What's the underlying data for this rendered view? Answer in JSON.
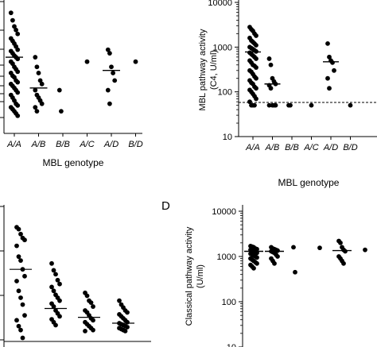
{
  "panel_letter": "D",
  "chart_data": [
    {
      "id": "panel-top-left",
      "type": "scatter",
      "title": "",
      "xlabel": "MBL genotype",
      "ylabel": "",
      "yscale": "log",
      "yticks": [],
      "categories": [
        "A/A",
        "A/B",
        "B/B",
        "A/C",
        "A/D",
        "B/D"
      ],
      "points": {
        "A/A": [
          1500,
          1200,
          1000,
          900,
          800,
          700,
          650,
          600,
          550,
          500,
          480,
          450,
          420,
          400,
          380,
          350,
          330,
          300,
          280,
          260,
          250,
          230,
          220,
          200,
          190,
          180,
          170,
          160,
          150,
          140,
          130,
          120,
          110,
          100,
          95,
          90,
          85,
          80,
          75,
          70
        ],
        "A/B": [
          400,
          300,
          250,
          200,
          180,
          150,
          130,
          120,
          110,
          100,
          90,
          80
        ],
        "B/B": [
          150,
          80
        ],
        "A/C": [
          350
        ],
        "A/D": [
          500,
          450,
          300,
          250,
          200,
          150,
          100
        ],
        "B/D": [
          350
        ]
      },
      "medians": {
        "A/A": 400,
        "A/B": 160,
        "A/D": 270
      }
    },
    {
      "id": "panel-top-right",
      "type": "scatter",
      "title": "",
      "xlabel": "MBL genotype",
      "ylabel": "MBL pathway activity\n(C4, U/ml)",
      "yscale": "log",
      "ylim": [
        10,
        10000
      ],
      "yticks": [
        "10",
        "100",
        "1000",
        "10000"
      ],
      "categories": [
        "A/A",
        "A/B",
        "B/B",
        "A/C",
        "A/D",
        "B/D"
      ],
      "points": {
        "A/A": [
          2800,
          2500,
          2300,
          2000,
          1800,
          1600,
          1400,
          1300,
          1200,
          1100,
          1000,
          950,
          900,
          850,
          800,
          750,
          700,
          650,
          600,
          550,
          500,
          450,
          400,
          380,
          350,
          300,
          280,
          250,
          220,
          200,
          180,
          160,
          150,
          130,
          120,
          110,
          100,
          90,
          80,
          70,
          60,
          50,
          50,
          50
        ],
        "A/B": [
          550,
          400,
          200,
          170,
          150,
          140,
          120,
          50,
          50,
          50,
          50
        ],
        "B/B": [
          50,
          50
        ],
        "A/C": [
          50
        ],
        "A/D": [
          1200,
          600,
          500,
          450,
          300,
          200,
          120
        ],
        "B/D": [
          50
        ]
      },
      "medians": {
        "A/A": 780,
        "A/B": 150,
        "A/D": 470
      },
      "detection_limit": 58
    },
    {
      "id": "panel-bottom-left",
      "type": "scatter",
      "title": "",
      "xlabel": "",
      "ylabel": "",
      "yticks": [],
      "groups": 4,
      "points": [
        [
          255,
          253,
          248,
          244,
          242,
          236,
          225,
          221,
          212,
          205,
          200,
          190,
          183,
          176,
          165,
          160,
          154,
          150,
          142
        ],
        [
          218,
          211,
          207,
          201,
          197,
          194,
          190,
          186,
          183,
          180,
          177,
          174,
          170,
          167,
          164,
          161,
          158,
          155
        ],
        [
          188,
          185,
          180,
          178,
          174,
          170,
          168,
          165,
          162,
          160,
          158,
          156,
          154,
          152,
          150,
          149
        ],
        [
          180,
          176,
          173,
          170,
          168,
          166,
          164,
          162,
          160,
          158,
          157,
          156,
          155,
          154,
          153,
          152,
          151,
          150,
          149
        ]
      ],
      "medians": [
        212,
        172,
        163,
        157
      ]
    },
    {
      "id": "panel-D",
      "type": "scatter",
      "title": "",
      "xlabel": "",
      "ylabel": "Classical pathway activity\n(U/ml)",
      "yscale": "log",
      "ylim": [
        10,
        10000
      ],
      "yticks": [
        "10",
        "100",
        "1000",
        "10000"
      ],
      "points": [
        [
          1700,
          1650,
          1600,
          1500,
          1450,
          1400,
          1350,
          1300,
          1250,
          1200,
          1150,
          1100,
          1050,
          1000,
          950,
          900,
          850,
          800,
          750,
          700,
          650,
          600,
          550
        ],
        [
          1600,
          1500,
          1450,
          1400,
          1350,
          1300,
          1250,
          1200,
          1100,
          1000,
          900,
          800,
          700
        ],
        [
          1600,
          450
        ],
        [
          1550
        ],
        [
          2200,
          2000,
          1600,
          1400,
          1300,
          1000,
          900,
          800,
          700
        ],
        [
          1400
        ]
      ],
      "medians": [
        1300,
        1300,
        null,
        null,
        1350,
        null
      ]
    }
  ]
}
